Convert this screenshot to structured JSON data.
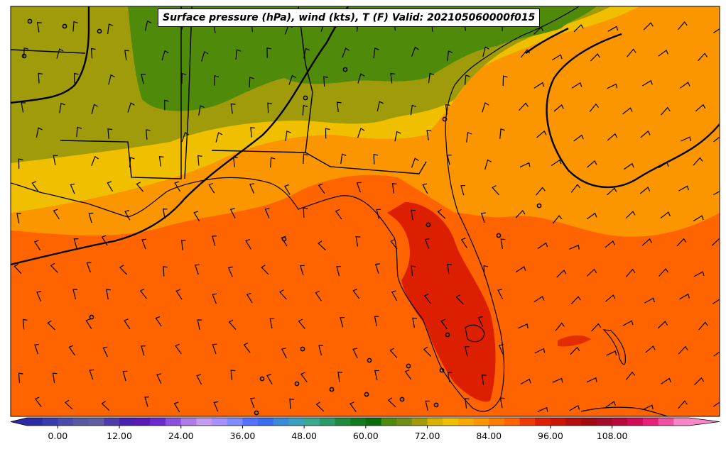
{
  "title": "Surface pressure (hPa), wind (kts), T (F) Valid: 202105060000f015",
  "colorbar": {
    "min": -6,
    "max": 123,
    "step": 3,
    "tick_labels": [
      "0.00",
      "12.00",
      "24.00",
      "36.00",
      "48.00",
      "60.00",
      "72.00",
      "84.00",
      "96.00",
      "108.00"
    ],
    "tick_values": [
      0,
      12,
      24,
      36,
      48,
      60,
      72,
      84,
      96,
      108
    ],
    "colors": [
      "#2b2ba3",
      "#3b3bb0",
      "#4a4aaa",
      "#58589f",
      "#5e5ea0",
      "#4e3ca8",
      "#4b1fb0",
      "#5b1ab8",
      "#6a2ad0",
      "#8c50e0",
      "#b07de8",
      "#c39cf0",
      "#a990ff",
      "#7f8cff",
      "#5470ff",
      "#3b6bef",
      "#3a8ad8",
      "#3aa0c0",
      "#3aa88f",
      "#2a9a6a",
      "#1f8a3e",
      "#127a1e",
      "#086c08",
      "#4f8a0a",
      "#6e8e14",
      "#a09b0a",
      "#d8b200",
      "#f0c000",
      "#f8aa00",
      "#fc9600",
      "#fd7d00",
      "#ff6400",
      "#ee3c00",
      "#dc1f00",
      "#cc1600",
      "#b40e0e",
      "#a20a10",
      "#a40a2c",
      "#b8083c",
      "#d30a57",
      "#e81e7a",
      "#f050a0",
      "#f887c8"
    ]
  },
  "legend_colors": {
    "warm_gulf": "#ff6400",
    "gulf_coast": "#fc9600",
    "south_plains": "#f0c000",
    "north": "#a09b0a",
    "appalachia": "#4f8a0a",
    "hot_florida": "#dc1f00",
    "isobar": "#000000"
  }
}
